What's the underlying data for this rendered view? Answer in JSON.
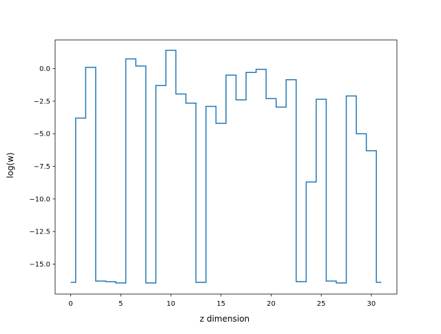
{
  "chart_data": {
    "type": "line",
    "style": "step",
    "title": "",
    "xlabel": "z dimension",
    "ylabel": "log(w)",
    "xlim": [
      -1.55,
      32.55
    ],
    "ylim": [
      -17.3,
      2.2
    ],
    "x_ticks": [
      0,
      5,
      10,
      15,
      20,
      25,
      30
    ],
    "y_ticks": [
      0.0,
      -2.5,
      -5.0,
      -7.5,
      -10.0,
      -12.5,
      -15.0
    ],
    "x_tick_labels": [
      "0",
      "5",
      "10",
      "15",
      "20",
      "25",
      "30"
    ],
    "y_tick_labels": [
      "0.0",
      "−2.5",
      "−5.0",
      "−7.5",
      "−10.0",
      "−12.5",
      "−15.0"
    ],
    "grid": false,
    "legend": false,
    "series": [
      {
        "color": "#1f77b4",
        "x": [
          0,
          1,
          2,
          3,
          4,
          5,
          6,
          7,
          8,
          9,
          10,
          11,
          12,
          13,
          14,
          15,
          16,
          17,
          18,
          19,
          20,
          21,
          22,
          23,
          24,
          25,
          26,
          27,
          28,
          29,
          30,
          31
        ],
        "values": [
          -16.4,
          -3.8,
          0.1,
          -16.3,
          -16.35,
          -16.45,
          0.75,
          0.2,
          -16.45,
          -1.3,
          1.4,
          -1.95,
          -2.65,
          -16.4,
          -2.9,
          -4.2,
          -0.5,
          -2.4,
          -0.3,
          -0.05,
          -2.3,
          -2.95,
          -0.85,
          -16.35,
          -8.7,
          -2.35,
          -16.3,
          -16.45,
          -2.1,
          -5.0,
          -6.3,
          -16.4
        ]
      }
    ]
  }
}
